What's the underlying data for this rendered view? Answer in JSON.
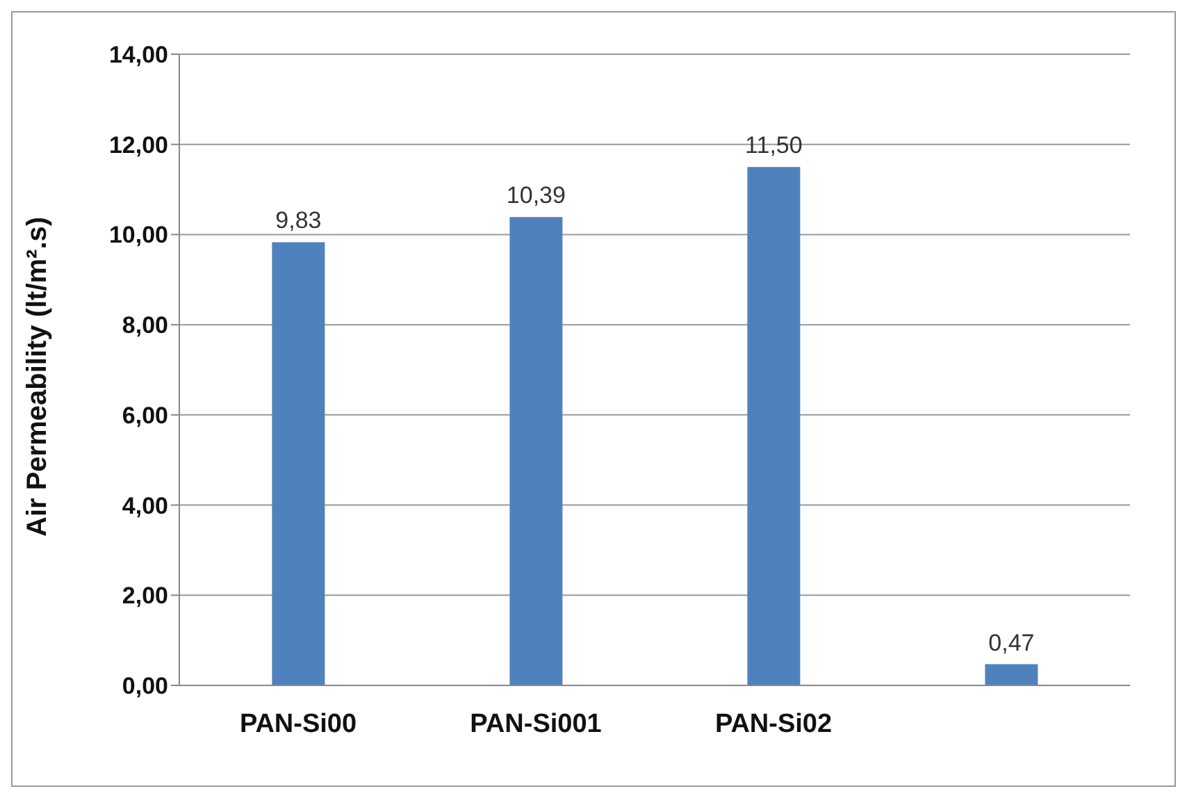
{
  "chart_data": {
    "type": "bar",
    "ylabel": "Air Permeability (lt/m².s)",
    "categories": [
      "PAN-Si00",
      "PAN-Si001",
      "PAN-Si02",
      null
    ],
    "values": [
      9.83,
      10.39,
      11.5,
      0.47
    ],
    "value_labels": [
      "9,83",
      "10,39",
      "11,50",
      "0,47"
    ],
    "color": "#4f81bd",
    "ylim": [
      0,
      14
    ],
    "yticks": [
      {
        "value": 0,
        "label": "0,00"
      },
      {
        "value": 2,
        "label": "2,00"
      },
      {
        "value": 4,
        "label": "4,00"
      },
      {
        "value": 6,
        "label": "6,00"
      },
      {
        "value": 8,
        "label": "8,00"
      },
      {
        "value": 10,
        "label": "10,00"
      },
      {
        "value": 12,
        "label": "12,00"
      },
      {
        "value": 14,
        "label": "14,00"
      }
    ],
    "grid": "y",
    "legend": false
  }
}
